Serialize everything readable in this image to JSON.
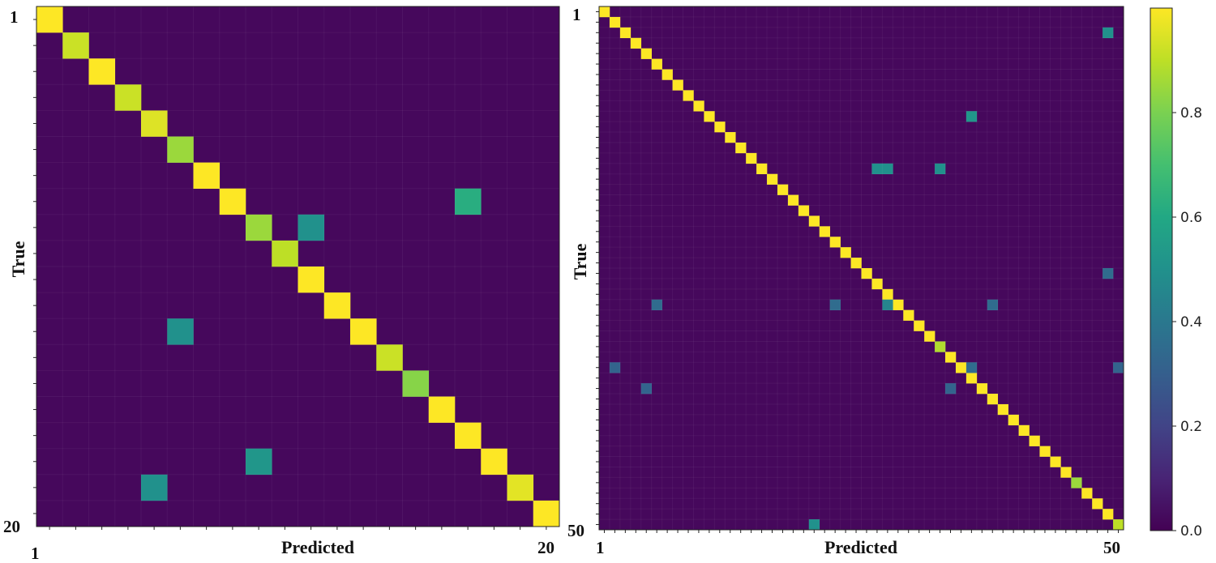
{
  "chart_data": [
    {
      "type": "heatmap",
      "name": "confusion-matrix-20",
      "n": 20,
      "xlabel": "Predicted",
      "ylabel": "True",
      "x_tick_labels": [
        "1",
        "20"
      ],
      "y_tick_labels": [
        "1",
        "20"
      ],
      "cmap": "viridis",
      "vmin": 0,
      "vmax": 1,
      "background_value": 0.03,
      "diagonal": [
        1.0,
        0.92,
        1.0,
        0.92,
        0.95,
        0.85,
        1.0,
        1.0,
        0.85,
        0.9,
        1.0,
        1.0,
        1.0,
        0.92,
        0.82,
        1.0,
        1.0,
        1.0,
        0.96,
        1.0
      ],
      "off_diagonal": [
        {
          "row": 8,
          "col": 17,
          "value": 0.62
        },
        {
          "row": 9,
          "col": 11,
          "value": 0.5
        },
        {
          "row": 13,
          "col": 6,
          "value": 0.5
        },
        {
          "row": 18,
          "col": 9,
          "value": 0.52
        },
        {
          "row": 19,
          "col": 5,
          "value": 0.5
        }
      ]
    },
    {
      "type": "heatmap",
      "name": "confusion-matrix-50",
      "n": 50,
      "xlabel": "Predicted",
      "ylabel": "True",
      "x_tick_labels": [
        "1",
        "50"
      ],
      "y_tick_labels": [
        "1",
        "50"
      ],
      "cmap": "viridis",
      "vmin": 0,
      "vmax": 1,
      "background_value": 0.03,
      "diagonal_default": 1.0,
      "diagonal_overrides": [
        {
          "index": 33,
          "value": 0.88
        },
        {
          "index": 46,
          "value": 0.85
        },
        {
          "index": 50,
          "value": 0.9
        }
      ],
      "off_diagonal": [
        {
          "row": 3,
          "col": 49,
          "value": 0.5
        },
        {
          "row": 11,
          "col": 36,
          "value": 0.52
        },
        {
          "row": 16,
          "col": 27,
          "value": 0.5
        },
        {
          "row": 16,
          "col": 28,
          "value": 0.5
        },
        {
          "row": 16,
          "col": 33,
          "value": 0.5
        },
        {
          "row": 26,
          "col": 49,
          "value": 0.35
        },
        {
          "row": 29,
          "col": 6,
          "value": 0.35
        },
        {
          "row": 29,
          "col": 23,
          "value": 0.35
        },
        {
          "row": 29,
          "col": 28,
          "value": 0.45
        },
        {
          "row": 29,
          "col": 38,
          "value": 0.35
        },
        {
          "row": 35,
          "col": 2,
          "value": 0.32
        },
        {
          "row": 35,
          "col": 36,
          "value": 0.35
        },
        {
          "row": 35,
          "col": 50,
          "value": 0.32
        },
        {
          "row": 37,
          "col": 5,
          "value": 0.32
        },
        {
          "row": 37,
          "col": 34,
          "value": 0.32
        },
        {
          "row": 50,
          "col": 21,
          "value": 0.5
        }
      ]
    }
  ],
  "colorbar": {
    "cmap": "viridis",
    "min": 0,
    "max": 1,
    "ticks": [
      {
        "value": 0.0,
        "label": "0.0"
      },
      {
        "value": 0.2,
        "label": "0.2"
      },
      {
        "value": 0.4,
        "label": "0.4"
      },
      {
        "value": 0.6,
        "label": "0.6"
      },
      {
        "value": 0.8,
        "label": "0.8"
      }
    ]
  }
}
